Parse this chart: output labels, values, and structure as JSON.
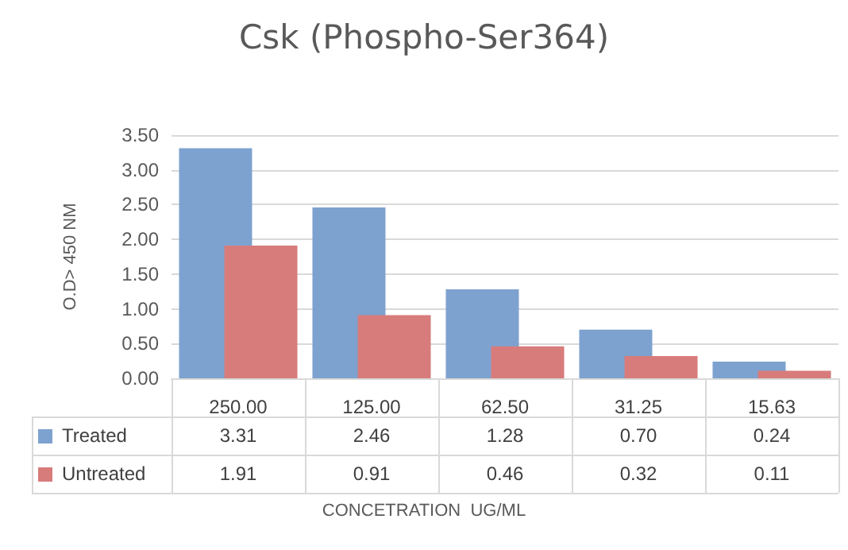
{
  "chart_data": {
    "type": "bar",
    "title": "Csk (Phospho-Ser364)",
    "xlabel": "CONCETRATION  UG/ML",
    "ylabel": "O.D> 450 NM",
    "categories": [
      "250.00",
      "125.00",
      "62.50",
      "31.25",
      "15.63"
    ],
    "series": [
      {
        "name": "Treated",
        "color": "#7ea2cf",
        "values": [
          3.31,
          2.46,
          1.28,
          0.7,
          0.24
        ],
        "value_labels": [
          "3.31",
          "2.46",
          "1.28",
          "0.70",
          "0.24"
        ]
      },
      {
        "name": "Untreated",
        "color": "#d87b7b",
        "values": [
          1.91,
          0.91,
          0.46,
          0.32,
          0.11
        ],
        "value_labels": [
          "1.91",
          "0.91",
          "0.46",
          "0.32",
          "0.11"
        ]
      }
    ],
    "ylim": [
      0,
      3.5
    ],
    "yticks": [
      {
        "value": 0,
        "label": "0.00"
      },
      {
        "value": 0.5,
        "label": "0.50"
      },
      {
        "value": 1,
        "label": "1.00"
      },
      {
        "value": 1.5,
        "label": "1.50"
      },
      {
        "value": 2,
        "label": "2.00"
      },
      {
        "value": 2.5,
        "label": "2.50"
      },
      {
        "value": 3,
        "label": "3.00"
      },
      {
        "value": 3.5,
        "label": "3.50"
      }
    ],
    "grid": "y",
    "legend": "bottom left"
  }
}
